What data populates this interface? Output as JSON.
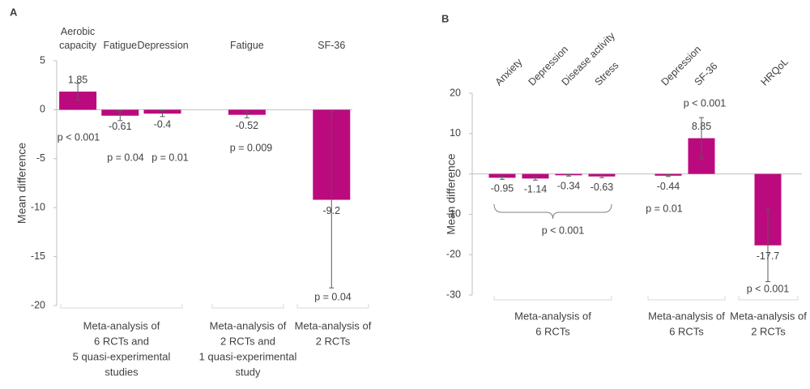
{
  "chart_data": [
    {
      "type": "bar",
      "panel": "A",
      "y_label": "Mean difference",
      "categories": [
        "Aerobic capacity",
        "Fatigue",
        "Depression",
        null,
        "Fatigue",
        null,
        "SF-36"
      ],
      "values": [
        1.85,
        -0.61,
        -0.4,
        null,
        -0.52,
        null,
        -9.2
      ],
      "errors": [
        0.85,
        0.5,
        0.3,
        null,
        0.3,
        null,
        9
      ],
      "color": "#bb0a7e",
      "ylim": [
        -20,
        5
      ],
      "yticks": [
        -20,
        -15,
        -10,
        -5,
        0,
        5
      ],
      "annotations": [
        "p < 0.001",
        "p = 0.04",
        "p = 0.01",
        "p = 0.009",
        "p = 0.04"
      ],
      "groups": [
        [
          "Meta-analysis of",
          "6 RCTs and",
          "5 quasi-experimental",
          "studies"
        ],
        [
          "Meta-analysis of",
          "2 RCTs and",
          "1 quasi-experimental",
          "study"
        ],
        [
          "Meta-analysis of",
          "2 RCTs"
        ]
      ]
    },
    {
      "type": "bar",
      "panel": "B",
      "y_label": "Mean difference",
      "categories": [
        "Anxiety",
        "Depression",
        "Disease activity",
        "Stress",
        null,
        "Depression",
        "SF-36",
        null,
        "HRQoL"
      ],
      "values": [
        -0.95,
        -1.14,
        -0.34,
        -0.63,
        null,
        -0.44,
        8.85,
        null,
        -17.7
      ],
      "errors": [
        0.4,
        0.4,
        0.2,
        0.3,
        null,
        0.2,
        5.1,
        null,
        9
      ],
      "color": "#bb0a7e",
      "ylim": [
        -30,
        20
      ],
      "yticks": [
        -30,
        -20,
        -10,
        0,
        10,
        20
      ],
      "annotations": [
        "p < 0.001",
        "p = 0.01",
        "p < 0.001",
        "p < 0.001"
      ],
      "groups": [
        [
          "Meta-analysis of",
          "6 RCTs"
        ],
        [
          "Meta-analysis of",
          "6 RCTs"
        ],
        [
          "Meta-analysis of",
          "2 RCTs"
        ]
      ]
    }
  ]
}
